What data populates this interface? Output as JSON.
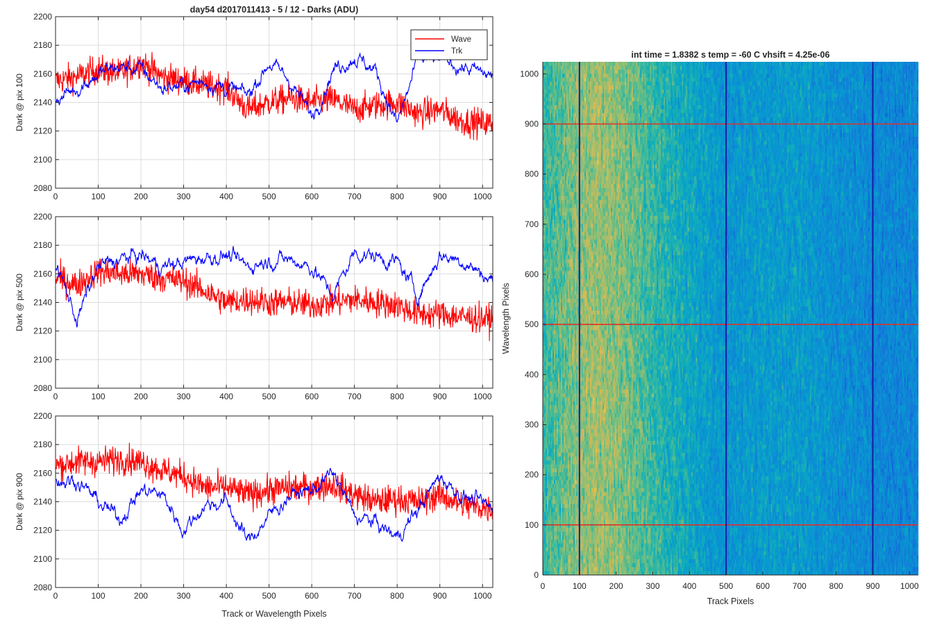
{
  "figure": {
    "title": "day54 d2017011413 - 5 / 12 - Darks (ADU)",
    "colors": {
      "wave": "#ff0000",
      "trk": "#0000ff",
      "axes": "#262626",
      "grid": "#dcdcdc",
      "marker_h": "#e0302a",
      "marker_v": "#1a1aa6"
    }
  },
  "chart_data": [
    {
      "type": "line",
      "ylabel": "Dark @ pix 100",
      "xlabel": "",
      "xlim": [
        0,
        1024
      ],
      "ylim": [
        2080,
        2200
      ],
      "xticks": [
        0,
        100,
        200,
        300,
        400,
        500,
        600,
        700,
        800,
        900,
        1000
      ],
      "yticks": [
        2080,
        2100,
        2120,
        2140,
        2160,
        2180,
        2200
      ],
      "grid": true,
      "legend": {
        "placement": "top-right",
        "entries": [
          "Wave",
          "Trk"
        ]
      },
      "series": [
        {
          "name": "Wave",
          "color": "#ff0000",
          "x": [
            0,
            50,
            100,
            150,
            200,
            250,
            300,
            350,
            400,
            450,
            500,
            550,
            600,
            650,
            700,
            750,
            800,
            850,
            900,
            950,
            1024
          ],
          "y": [
            2155,
            2158,
            2163,
            2160,
            2168,
            2158,
            2155,
            2152,
            2150,
            2135,
            2140,
            2143,
            2140,
            2142,
            2135,
            2138,
            2140,
            2132,
            2135,
            2127,
            2125
          ]
        },
        {
          "name": "Trk",
          "color": "#0000ff",
          "x": [
            0,
            50,
            100,
            150,
            200,
            250,
            300,
            350,
            400,
            450,
            500,
            550,
            600,
            650,
            700,
            750,
            800,
            850,
            900,
            950,
            1024
          ],
          "y": [
            2142,
            2150,
            2160,
            2165,
            2163,
            2150,
            2152,
            2155,
            2150,
            2145,
            2168,
            2155,
            2130,
            2163,
            2172,
            2162,
            2125,
            2170,
            2170,
            2165,
            2158
          ]
        }
      ]
    },
    {
      "type": "line",
      "ylabel": "Dark @ pix 500",
      "xlabel": "",
      "xlim": [
        0,
        1024
      ],
      "ylim": [
        2080,
        2200
      ],
      "xticks": [
        0,
        100,
        200,
        300,
        400,
        500,
        600,
        700,
        800,
        900,
        1000
      ],
      "yticks": [
        2080,
        2100,
        2120,
        2140,
        2160,
        2180,
        2200
      ],
      "grid": true,
      "series": [
        {
          "name": "Wave",
          "color": "#ff0000",
          "x": [
            0,
            50,
            100,
            150,
            200,
            250,
            300,
            350,
            400,
            450,
            500,
            550,
            600,
            650,
            700,
            750,
            800,
            850,
            900,
            950,
            1024
          ],
          "y": [
            2158,
            2152,
            2162,
            2160,
            2160,
            2157,
            2155,
            2148,
            2140,
            2142,
            2140,
            2140,
            2138,
            2140,
            2142,
            2140,
            2138,
            2132,
            2132,
            2130,
            2128
          ]
        },
        {
          "name": "Trk",
          "color": "#0000ff",
          "x": [
            0,
            50,
            100,
            150,
            200,
            250,
            300,
            350,
            400,
            450,
            500,
            550,
            600,
            650,
            700,
            750,
            800,
            850,
            900,
            950,
            1024
          ],
          "y": [
            2168,
            2128,
            2165,
            2170,
            2173,
            2165,
            2168,
            2172,
            2173,
            2165,
            2170,
            2170,
            2165,
            2145,
            2175,
            2172,
            2168,
            2145,
            2173,
            2170,
            2155
          ]
        }
      ]
    },
    {
      "type": "line",
      "ylabel": "Dark @ pix 900",
      "xlabel": "Track or Wavelength Pixels",
      "xlim": [
        0,
        1024
      ],
      "ylim": [
        2080,
        2200
      ],
      "xticks": [
        0,
        100,
        200,
        300,
        400,
        500,
        600,
        700,
        800,
        900,
        1000
      ],
      "yticks": [
        2080,
        2100,
        2120,
        2140,
        2160,
        2180,
        2200
      ],
      "grid": true,
      "series": [
        {
          "name": "Wave",
          "color": "#ff0000",
          "x": [
            0,
            50,
            100,
            150,
            200,
            250,
            300,
            350,
            400,
            450,
            500,
            550,
            600,
            650,
            700,
            750,
            800,
            850,
            900,
            950,
            1024
          ],
          "y": [
            2165,
            2168,
            2168,
            2170,
            2168,
            2162,
            2158,
            2150,
            2150,
            2145,
            2148,
            2150,
            2150,
            2152,
            2145,
            2140,
            2142,
            2140,
            2145,
            2138,
            2135
          ]
        },
        {
          "name": "Trk",
          "color": "#0000ff",
          "x": [
            0,
            50,
            100,
            150,
            200,
            250,
            300,
            350,
            400,
            450,
            500,
            550,
            600,
            650,
            700,
            750,
            800,
            850,
            900,
            950,
            1024
          ],
          "y": [
            2155,
            2155,
            2140,
            2128,
            2148,
            2145,
            2120,
            2138,
            2140,
            2112,
            2130,
            2145,
            2148,
            2160,
            2130,
            2125,
            2115,
            2135,
            2158,
            2145,
            2135
          ]
        }
      ]
    },
    {
      "type": "heatmap",
      "title": "int time = 1.8382 s    temp = -60 C    vhsift = 4.25e-06",
      "xlabel": "Track Pixels",
      "ylabel": "Wavelength Pixels",
      "xlim": [
        0,
        1024
      ],
      "ylim": [
        0,
        1024
      ],
      "xticks": [
        0,
        100,
        200,
        300,
        400,
        500,
        600,
        700,
        800,
        900,
        1000
      ],
      "yticks": [
        0,
        100,
        200,
        300,
        400,
        500,
        600,
        700,
        800,
        900,
        1000
      ],
      "colormap": "parula",
      "column_profile": {
        "x": [
          0,
          100,
          150,
          200,
          300,
          400,
          500,
          600,
          700,
          800,
          900,
          1024
        ],
        "level": [
          0.6,
          0.72,
          0.75,
          0.72,
          0.6,
          0.5,
          0.42,
          0.45,
          0.45,
          0.4,
          0.36,
          0.35
        ]
      },
      "marker_lines_horizontal": [
        100,
        500,
        900
      ],
      "marker_lines_vertical": [
        100,
        500,
        900
      ]
    }
  ]
}
